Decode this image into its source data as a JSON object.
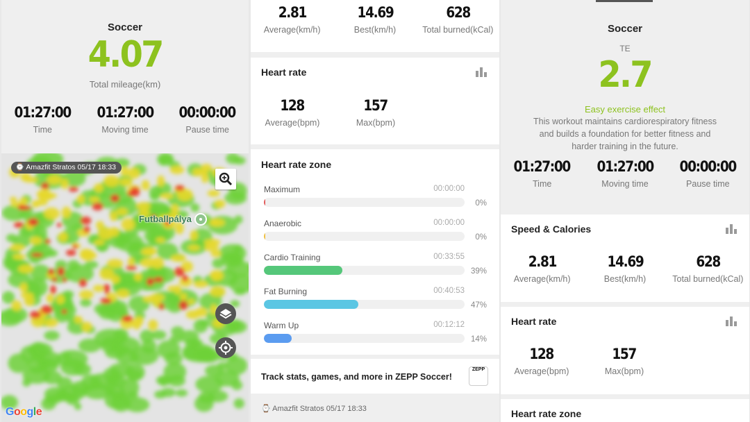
{
  "colors": {
    "accent": "#8dc21f",
    "zone_maximum": "#e25a5a",
    "zone_anaerobic": "#f0c040",
    "zone_cardio": "#55c77a",
    "zone_fat": "#5bc6e3",
    "zone_warm": "#5b9cf0"
  },
  "panel1": {
    "sport": "Soccer",
    "mileage": "4.07",
    "mileage_label": "Total mileage(km)",
    "stats": [
      {
        "value": "01:27:00",
        "label": "Time"
      },
      {
        "value": "01:27:00",
        "label": "Moving time"
      },
      {
        "value": "00:00:00",
        "label": "Pause time"
      }
    ],
    "map": {
      "device_badge": "Amazfit Stratos  05/17 18:33",
      "place": "Futballpálya",
      "attribution": "Google",
      "icons": [
        "zoom-in-icon",
        "layers-icon",
        "my-location-icon",
        "watch-icon"
      ]
    }
  },
  "panel2": {
    "speed": [
      {
        "value": "2.81",
        "label": "Average(km/h)"
      },
      {
        "value": "14.69",
        "label": "Best(km/h)"
      },
      {
        "value": "628",
        "label": "Total burned(kCal)"
      }
    ],
    "heart_rate": {
      "title": "Heart rate",
      "stats": [
        {
          "value": "128",
          "label": "Average(bpm)"
        },
        {
          "value": "157",
          "label": "Max(bpm)"
        }
      ]
    },
    "zones": {
      "title": "Heart rate zone",
      "items": [
        {
          "name": "Maximum",
          "time": "00:00:00",
          "pct": "0%",
          "fraction": 0.0,
          "color": "#e25a5a"
        },
        {
          "name": "Anaerobic",
          "time": "00:00:00",
          "pct": "0%",
          "fraction": 0.0,
          "color": "#f0c040"
        },
        {
          "name": "Cardio Training",
          "time": "00:33:55",
          "pct": "39%",
          "fraction": 0.39,
          "color": "#55c77a"
        },
        {
          "name": "Fat Burning",
          "time": "00:40:53",
          "pct": "47%",
          "fraction": 0.47,
          "color": "#5bc6e3"
        },
        {
          "name": "Warm Up",
          "time": "00:12:12",
          "pct": "14%",
          "fraction": 0.14,
          "color": "#5b9cf0"
        }
      ]
    },
    "promo": "Track stats, games, and more in ZEPP Soccer!",
    "promo_logo": "ZEPP",
    "footer": "Amazfit Stratos  05/17 18:33"
  },
  "panel3": {
    "sport": "Soccer",
    "te_label": "TE",
    "te_value": "2.7",
    "effect": "Easy exercise effect",
    "description_lines": [
      "This workout maintains cardiorespiratory fitness",
      "and builds a foundation for better fitness and",
      "harder training in the future."
    ],
    "stats": [
      {
        "value": "01:27:00",
        "label": "Time"
      },
      {
        "value": "01:27:00",
        "label": "Moving time"
      },
      {
        "value": "00:00:00",
        "label": "Pause time"
      }
    ],
    "speed_title": "Speed & Calories",
    "speed": [
      {
        "value": "2.81",
        "label": "Average(km/h)"
      },
      {
        "value": "14.69",
        "label": "Best(km/h)"
      },
      {
        "value": "628",
        "label": "Total burned(kCal)"
      }
    ],
    "heart_rate": {
      "title": "Heart rate",
      "stats": [
        {
          "value": "128",
          "label": "Average(bpm)"
        },
        {
          "value": "157",
          "label": "Max(bpm)"
        }
      ]
    },
    "zones_title": "Heart rate zone"
  }
}
